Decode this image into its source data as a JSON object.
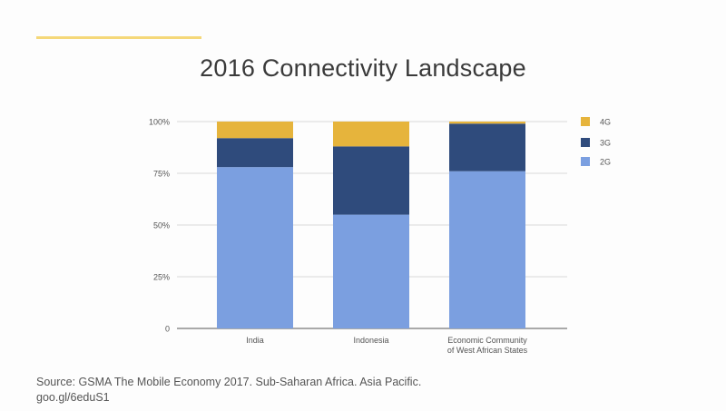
{
  "slide": {
    "title": "2016 Connectivity Landscape",
    "source_line1": "Source: GSMA The Mobile Economy 2017. Sub-Saharan Africa. Asia Pacific.",
    "source_line2": "goo.gl/6eduS1",
    "accent_color": "#f5d879"
  },
  "chart_data": {
    "type": "bar",
    "stacked": true,
    "categories": [
      [
        "India"
      ],
      [
        "Indonesia"
      ],
      [
        "Economic Community",
        "of West African States"
      ]
    ],
    "series": [
      {
        "name": "2G",
        "color": "#7b9fe0",
        "values": [
          78,
          55,
          76
        ]
      },
      {
        "name": "3G",
        "color": "#2f4b7c",
        "values": [
          14,
          33,
          23
        ]
      },
      {
        "name": "4G",
        "color": "#e6b43c",
        "values": [
          8,
          12,
          1
        ]
      }
    ],
    "y_ticks": [
      {
        "value": 0,
        "label": "0"
      },
      {
        "value": 25,
        "label": "25%"
      },
      {
        "value": 50,
        "label": "50%"
      },
      {
        "value": 75,
        "label": "75%"
      },
      {
        "value": 100,
        "label": "100%"
      }
    ],
    "ylim": [
      0,
      100
    ],
    "grid": true,
    "legend_position": "right",
    "legend_order": [
      "4G",
      "3G",
      "2G"
    ]
  }
}
